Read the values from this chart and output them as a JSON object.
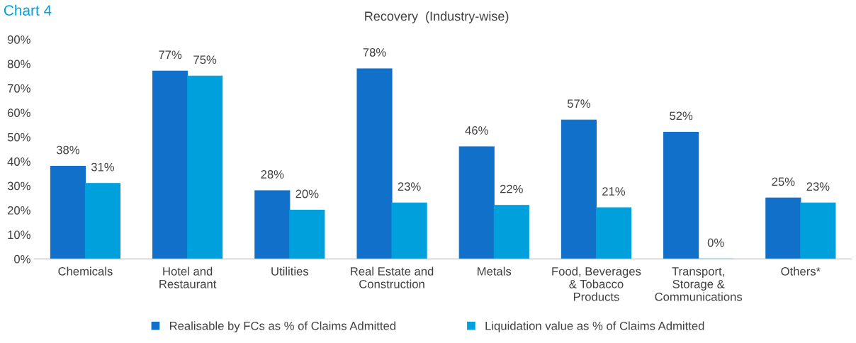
{
  "chart_data": {
    "type": "bar",
    "title": "Recovery  (Industry-wise)",
    "annotations": [
      "Chart 4"
    ],
    "categories": [
      "Chemicals",
      "Hotel and\nRestaurant",
      "Utilities",
      "Real Estate and\nConstruction",
      "Metals",
      "Food, Beverages\n& Tobacco\nProducts",
      "Transport,\nStorage &\nCommunications",
      "Others*"
    ],
    "series": [
      {
        "name": "Realisable by FCs as % of Claims Admitted",
        "color": "#1170c9",
        "values": [
          38,
          77,
          28,
          78,
          46,
          57,
          52,
          25
        ],
        "value_labels": [
          "38%",
          "77%",
          "28%",
          "78%",
          "46%",
          "57%",
          "52%",
          "25%"
        ]
      },
      {
        "name": "Liquidation value as % of Claims Admitted",
        "color": "#00a0dc",
        "values": [
          31,
          75,
          20,
          23,
          22,
          21,
          0,
          23
        ],
        "value_labels": [
          "31%",
          "75%",
          "20%",
          "23%",
          "22%",
          "21%",
          "0%",
          "23%"
        ]
      }
    ],
    "ylim": [
      0,
      90
    ],
    "yticks": [
      {
        "value": 0,
        "label": "0%"
      },
      {
        "value": 10,
        "label": "10%"
      },
      {
        "value": 20,
        "label": "20%"
      },
      {
        "value": 30,
        "label": "30%"
      },
      {
        "value": 40,
        "label": "40%"
      },
      {
        "value": 50,
        "label": "50%"
      },
      {
        "value": 60,
        "label": "60%"
      },
      {
        "value": 70,
        "label": "70%"
      },
      {
        "value": 80,
        "label": "80%"
      },
      {
        "value": 90,
        "label": "90%"
      }
    ],
    "grid": false,
    "legend": "bottom"
  }
}
